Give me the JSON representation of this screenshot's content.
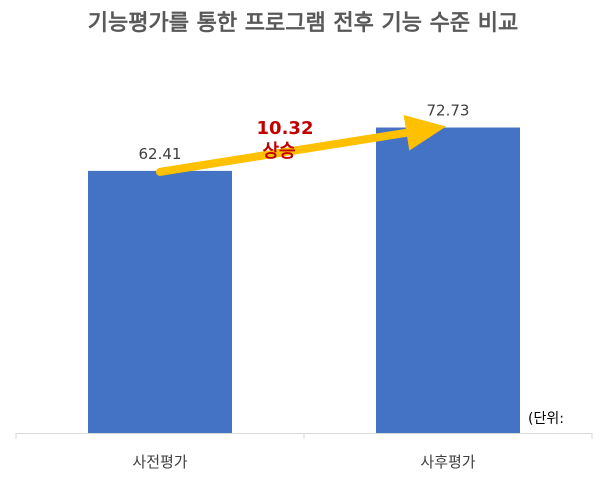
{
  "chart_data": {
    "type": "bar",
    "title": "기능평가를 통한 프로그램 전후 기능 수준 비교",
    "categories": [
      "사전평가",
      "사후평가"
    ],
    "values": [
      62.41,
      72.73
    ],
    "value_labels": [
      "62.41",
      "72.73"
    ],
    "unit_note": "(단위:",
    "annotation": {
      "value": "10.32",
      "word": "상승"
    },
    "grid": false,
    "legend": "none"
  },
  "colors": {
    "bar": "#4472C4",
    "arrow": "#FFC000",
    "annotation": "#C00000",
    "title": "#595959",
    "axis": "#D9D9D9"
  }
}
